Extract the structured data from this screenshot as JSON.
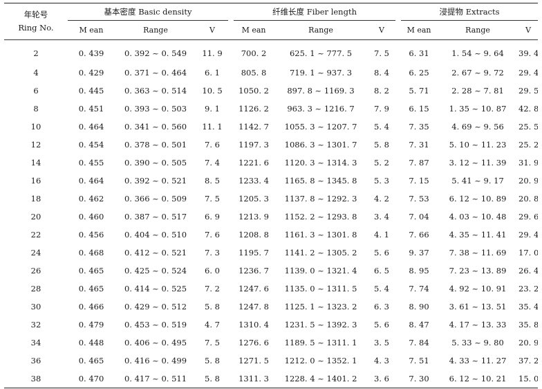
{
  "headers": {
    "ring_cn": "年轮号",
    "ring_en": "Ring No.",
    "group1": "基本密度 Basic density",
    "group2": "纤维长度 Fiber length",
    "group3": "浸提物 Extracts",
    "mean": "M ean",
    "range": "Range",
    "v": "V"
  },
  "rows": [
    {
      "ring": "2",
      "bd_mean": "0. 439",
      "bd_range": "0. 392 ~ 0. 549",
      "bd_v": "11. 9",
      "fl_mean": "700. 2",
      "fl_range": "625. 1 ~ 777. 5",
      "fl_v": "7. 5",
      "ex_mean": "6. 31",
      "ex_range": "1. 54 ~ 9. 64",
      "ex_v": "39. 4"
    },
    {
      "ring": "4",
      "bd_mean": "0. 429",
      "bd_range": "0. 371 ~ 0. 464",
      "bd_v": "6. 1",
      "fl_mean": "805. 8",
      "fl_range": "719. 1 ~ 937. 3",
      "fl_v": "8. 4",
      "ex_mean": "6. 25",
      "ex_range": "2. 67 ~ 9. 72",
      "ex_v": "29. 4"
    },
    {
      "ring": "6",
      "bd_mean": "0. 445",
      "bd_range": "0. 363 ~ 0. 514",
      "bd_v": "10. 5",
      "fl_mean": "1050. 2",
      "fl_range": "897. 8 ~ 1169. 3",
      "fl_v": "8. 2",
      "ex_mean": "5. 71",
      "ex_range": "2. 28 ~ 7. 81",
      "ex_v": "29. 5"
    },
    {
      "ring": "8",
      "bd_mean": "0. 451",
      "bd_range": "0. 393 ~ 0. 503",
      "bd_v": "9. 1",
      "fl_mean": "1126. 2",
      "fl_range": "963. 3 ~ 1216. 7",
      "fl_v": "7. 9",
      "ex_mean": "6. 15",
      "ex_range": "1. 35 ~ 10. 87",
      "ex_v": "42. 8"
    },
    {
      "ring": "10",
      "bd_mean": "0. 464",
      "bd_range": "0. 341 ~ 0. 560",
      "bd_v": "11. 1",
      "fl_mean": "1142. 7",
      "fl_range": "1055. 3 ~ 1207. 7",
      "fl_v": "5. 4",
      "ex_mean": "7. 35",
      "ex_range": "4. 69 ~ 9. 56",
      "ex_v": "25. 5"
    },
    {
      "ring": "12",
      "bd_mean": "0. 454",
      "bd_range": "0. 378 ~ 0. 501",
      "bd_v": "7. 6",
      "fl_mean": "1197. 3",
      "fl_range": "1086. 3 ~ 1301. 7",
      "fl_v": "5. 8",
      "ex_mean": "7. 31",
      "ex_range": "5. 10 ~ 11. 23",
      "ex_v": "25. 2"
    },
    {
      "ring": "14",
      "bd_mean": "0. 455",
      "bd_range": "0. 390 ~ 0. 505",
      "bd_v": "7. 4",
      "fl_mean": "1221. 6",
      "fl_range": "1120. 3 ~ 1314. 3",
      "fl_v": "5. 2",
      "ex_mean": "7. 87",
      "ex_range": "3. 12 ~ 11. 39",
      "ex_v": "31. 9"
    },
    {
      "ring": "16",
      "bd_mean": "0. 464",
      "bd_range": "0. 392 ~ 0. 521",
      "bd_v": "8. 5",
      "fl_mean": "1233. 4",
      "fl_range": "1165. 8 ~ 1345. 8",
      "fl_v": "5. 3",
      "ex_mean": "7. 15",
      "ex_range": "5. 41 ~ 9. 17",
      "ex_v": "20. 9"
    },
    {
      "ring": "18",
      "bd_mean": "0. 462",
      "bd_range": "0. 366 ~ 0. 509",
      "bd_v": "7. 5",
      "fl_mean": "1205. 3",
      "fl_range": "1137. 8 ~ 1292. 3",
      "fl_v": "4. 2",
      "ex_mean": "7. 53",
      "ex_range": "6. 12 ~ 10. 89",
      "ex_v": "20. 8"
    },
    {
      "ring": "20",
      "bd_mean": "0. 460",
      "bd_range": "0. 387 ~ 0. 517",
      "bd_v": "6. 9",
      "fl_mean": "1213. 9",
      "fl_range": "1152. 2 ~ 1293. 8",
      "fl_v": "3. 4",
      "ex_mean": "7. 04",
      "ex_range": "4. 03 ~ 10. 48",
      "ex_v": "29. 6"
    },
    {
      "ring": "22",
      "bd_mean": "0. 456",
      "bd_range": "0. 404 ~ 0. 510",
      "bd_v": "7. 6",
      "fl_mean": "1208. 8",
      "fl_range": "1161. 3 ~ 1301. 8",
      "fl_v": "4. 1",
      "ex_mean": "7. 66",
      "ex_range": "4. 35 ~ 11. 41",
      "ex_v": "29. 4"
    },
    {
      "ring": "24",
      "bd_mean": "0. 468",
      "bd_range": "0. 412 ~ 0. 521",
      "bd_v": "7. 3",
      "fl_mean": "1195. 7",
      "fl_range": "1141. 2 ~ 1305. 2",
      "fl_v": "5. 6",
      "ex_mean": "9. 37",
      "ex_range": "7. 38 ~ 11. 69",
      "ex_v": "17. 0"
    },
    {
      "ring": "26",
      "bd_mean": "0. 465",
      "bd_range": "0. 425 ~ 0. 524",
      "bd_v": "6. 0",
      "fl_mean": "1236. 7",
      "fl_range": "1139. 0 ~ 1321. 4",
      "fl_v": "6. 5",
      "ex_mean": "8. 95",
      "ex_range": "7. 23 ~ 13. 89",
      "ex_v": "26. 4"
    },
    {
      "ring": "28",
      "bd_mean": "0. 465",
      "bd_range": "0. 414 ~ 0. 525",
      "bd_v": "7. 2",
      "fl_mean": "1247. 6",
      "fl_range": "1135. 0 ~ 1311. 5",
      "fl_v": "5. 4",
      "ex_mean": "7. 74",
      "ex_range": "4. 92 ~ 10. 91",
      "ex_v": "23. 2"
    },
    {
      "ring": "30",
      "bd_mean": "0. 466",
      "bd_range": "0. 429 ~ 0. 512",
      "bd_v": "5. 8",
      "fl_mean": "1247. 8",
      "fl_range": "1125. 1 ~ 1323. 2",
      "fl_v": "6. 3",
      "ex_mean": "8. 90",
      "ex_range": "3. 61 ~ 13. 51",
      "ex_v": "35. 4"
    },
    {
      "ring": "32",
      "bd_mean": "0. 479",
      "bd_range": "0. 453 ~ 0. 519",
      "bd_v": "4. 7",
      "fl_mean": "1310. 4",
      "fl_range": "1231. 5 ~ 1392. 3",
      "fl_v": "5. 6",
      "ex_mean": "8. 47",
      "ex_range": "4. 17 ~ 13. 33",
      "ex_v": "35. 8"
    },
    {
      "ring": "34",
      "bd_mean": "0. 448",
      "bd_range": "0. 406 ~ 0. 495",
      "bd_v": "7. 5",
      "fl_mean": "1276. 6",
      "fl_range": "1189. 5 ~ 1311. 1",
      "fl_v": "3. 5",
      "ex_mean": "7. 84",
      "ex_range": "5. 33 ~ 9. 80",
      "ex_v": "20. 9"
    },
    {
      "ring": "36",
      "bd_mean": "0. 465",
      "bd_range": "0. 416 ~ 0. 499",
      "bd_v": "5. 8",
      "fl_mean": "1271. 5",
      "fl_range": "1212. 0 ~ 1352. 1",
      "fl_v": "4. 3",
      "ex_mean": "7. 51",
      "ex_range": "4. 33 ~ 11. 27",
      "ex_v": "37. 2"
    },
    {
      "ring": "38",
      "bd_mean": "0. 470",
      "bd_range": "0. 417 ~ 0. 511",
      "bd_v": "5. 8",
      "fl_mean": "1311. 3",
      "fl_range": "1228. 4 ~ 1401. 2",
      "fl_v": "3. 6",
      "ex_mean": "7. 30",
      "ex_range": "6. 12 ~ 10. 21",
      "ex_v": "15. 0"
    }
  ]
}
